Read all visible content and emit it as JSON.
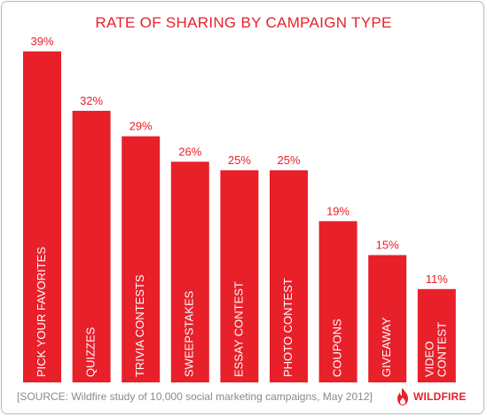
{
  "chart_data": {
    "type": "bar",
    "title": "RATE OF SHARING BY CAMPAIGN TYPE",
    "categories": [
      "PICK YOUR FAVORITES",
      "QUIZZES",
      "TRIVIA CONTESTS",
      "SWEEPSTAKES",
      "ESSAY CONTEST",
      "PHOTO CONTEST",
      "COUPONS",
      "GIVEAWAY",
      "VIDEO CONTEST"
    ],
    "category_lines": [
      [
        "PICK YOUR FAVORITES"
      ],
      [
        "QUIZZES"
      ],
      [
        "TRIVIA CONTESTS"
      ],
      [
        "SWEEPSTAKES"
      ],
      [
        "ESSAY CONTEST"
      ],
      [
        "PHOTO CONTEST"
      ],
      [
        "COUPONS"
      ],
      [
        "GIVEAWAY"
      ],
      [
        "VIDEO",
        "CONTEST"
      ]
    ],
    "values": [
      39,
      32,
      29,
      26,
      25,
      25,
      19,
      15,
      11
    ],
    "value_labels": [
      "39%",
      "32%",
      "29%",
      "26%",
      "25%",
      "25%",
      "19%",
      "15%",
      "11%"
    ],
    "unit": "%",
    "ylim": [
      0,
      39
    ],
    "xlabel": "",
    "ylabel": "",
    "grid": false,
    "legend": "none",
    "bar_color": "#e8202a",
    "text_color": "#e8202a"
  },
  "source": "[SOURCE: Wildfire study of 10,000 social marketing campaigns, May 2012]",
  "brand": {
    "name": "WILDFIRE",
    "icon": "flame-icon",
    "color": "#e8202a"
  }
}
